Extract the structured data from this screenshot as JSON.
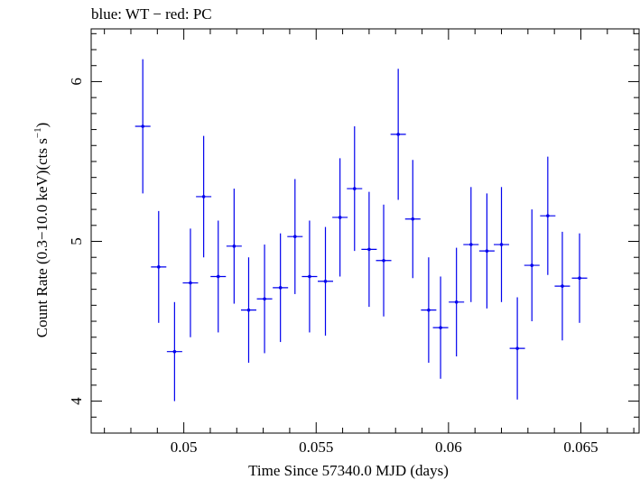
{
  "chart_data": {
    "type": "scatter",
    "title": "blue: WT − red: PC",
    "xlabel": "Time Since 57340.0 MJD (days)",
    "ylabel_main": "Count Rate (0.3−10.0 keV)(cts s",
    "ylabel_sup": "−1",
    "ylabel_end": ")",
    "xlim": [
      0.0465,
      0.0672
    ],
    "ylim": [
      3.8,
      6.33
    ],
    "x_ticks": [
      {
        "value": 0.05,
        "label": "0.05"
      },
      {
        "value": 0.055,
        "label": "0.055"
      },
      {
        "value": 0.06,
        "label": "0.06"
      },
      {
        "value": 0.065,
        "label": "0.065"
      }
    ],
    "y_ticks": [
      {
        "value": 4,
        "label": "4"
      },
      {
        "value": 5,
        "label": "5"
      },
      {
        "value": 6,
        "label": "6"
      }
    ],
    "grid": false,
    "series": [
      {
        "color": "#0000ee",
        "x_half_width": 0.00029,
        "points": [
          {
            "x": 0.04845,
            "y": 5.72,
            "yerr": 0.42
          },
          {
            "x": 0.04905,
            "y": 4.84,
            "yerr": 0.35
          },
          {
            "x": 0.04965,
            "y": 4.31,
            "yerr": 0.31
          },
          {
            "x": 0.05025,
            "y": 4.74,
            "yerr": 0.34
          },
          {
            "x": 0.05075,
            "y": 5.28,
            "yerr": 0.38
          },
          {
            "x": 0.0513,
            "y": 4.78,
            "yerr": 0.35
          },
          {
            "x": 0.0519,
            "y": 4.97,
            "yerr": 0.36
          },
          {
            "x": 0.05245,
            "y": 4.57,
            "yerr": 0.33
          },
          {
            "x": 0.05305,
            "y": 4.64,
            "yerr": 0.34
          },
          {
            "x": 0.05365,
            "y": 4.71,
            "yerr": 0.34
          },
          {
            "x": 0.0542,
            "y": 5.03,
            "yerr": 0.36
          },
          {
            "x": 0.05475,
            "y": 4.78,
            "yerr": 0.35
          },
          {
            "x": 0.05535,
            "y": 4.75,
            "yerr": 0.34
          },
          {
            "x": 0.0559,
            "y": 5.15,
            "yerr": 0.37
          },
          {
            "x": 0.05645,
            "y": 5.33,
            "yerr": 0.39
          },
          {
            "x": 0.057,
            "y": 4.95,
            "yerr": 0.36
          },
          {
            "x": 0.05755,
            "y": 4.88,
            "yerr": 0.35
          },
          {
            "x": 0.0581,
            "y": 5.67,
            "yerr": 0.41
          },
          {
            "x": 0.05865,
            "y": 5.14,
            "yerr": 0.37
          },
          {
            "x": 0.05925,
            "y": 4.57,
            "yerr": 0.33
          },
          {
            "x": 0.0597,
            "y": 4.46,
            "yerr": 0.32
          },
          {
            "x": 0.0603,
            "y": 4.62,
            "yerr": 0.34
          },
          {
            "x": 0.06085,
            "y": 4.98,
            "yerr": 0.36
          },
          {
            "x": 0.06145,
            "y": 4.94,
            "yerr": 0.36
          },
          {
            "x": 0.062,
            "y": 4.98,
            "yerr": 0.36
          },
          {
            "x": 0.0626,
            "y": 4.33,
            "yerr": 0.32
          },
          {
            "x": 0.06315,
            "y": 4.85,
            "yerr": 0.35
          },
          {
            "x": 0.06375,
            "y": 5.16,
            "yerr": 0.37
          },
          {
            "x": 0.0643,
            "y": 4.72,
            "yerr": 0.34
          },
          {
            "x": 0.06495,
            "y": 4.77,
            "yerr": 0.28
          }
        ]
      }
    ]
  }
}
